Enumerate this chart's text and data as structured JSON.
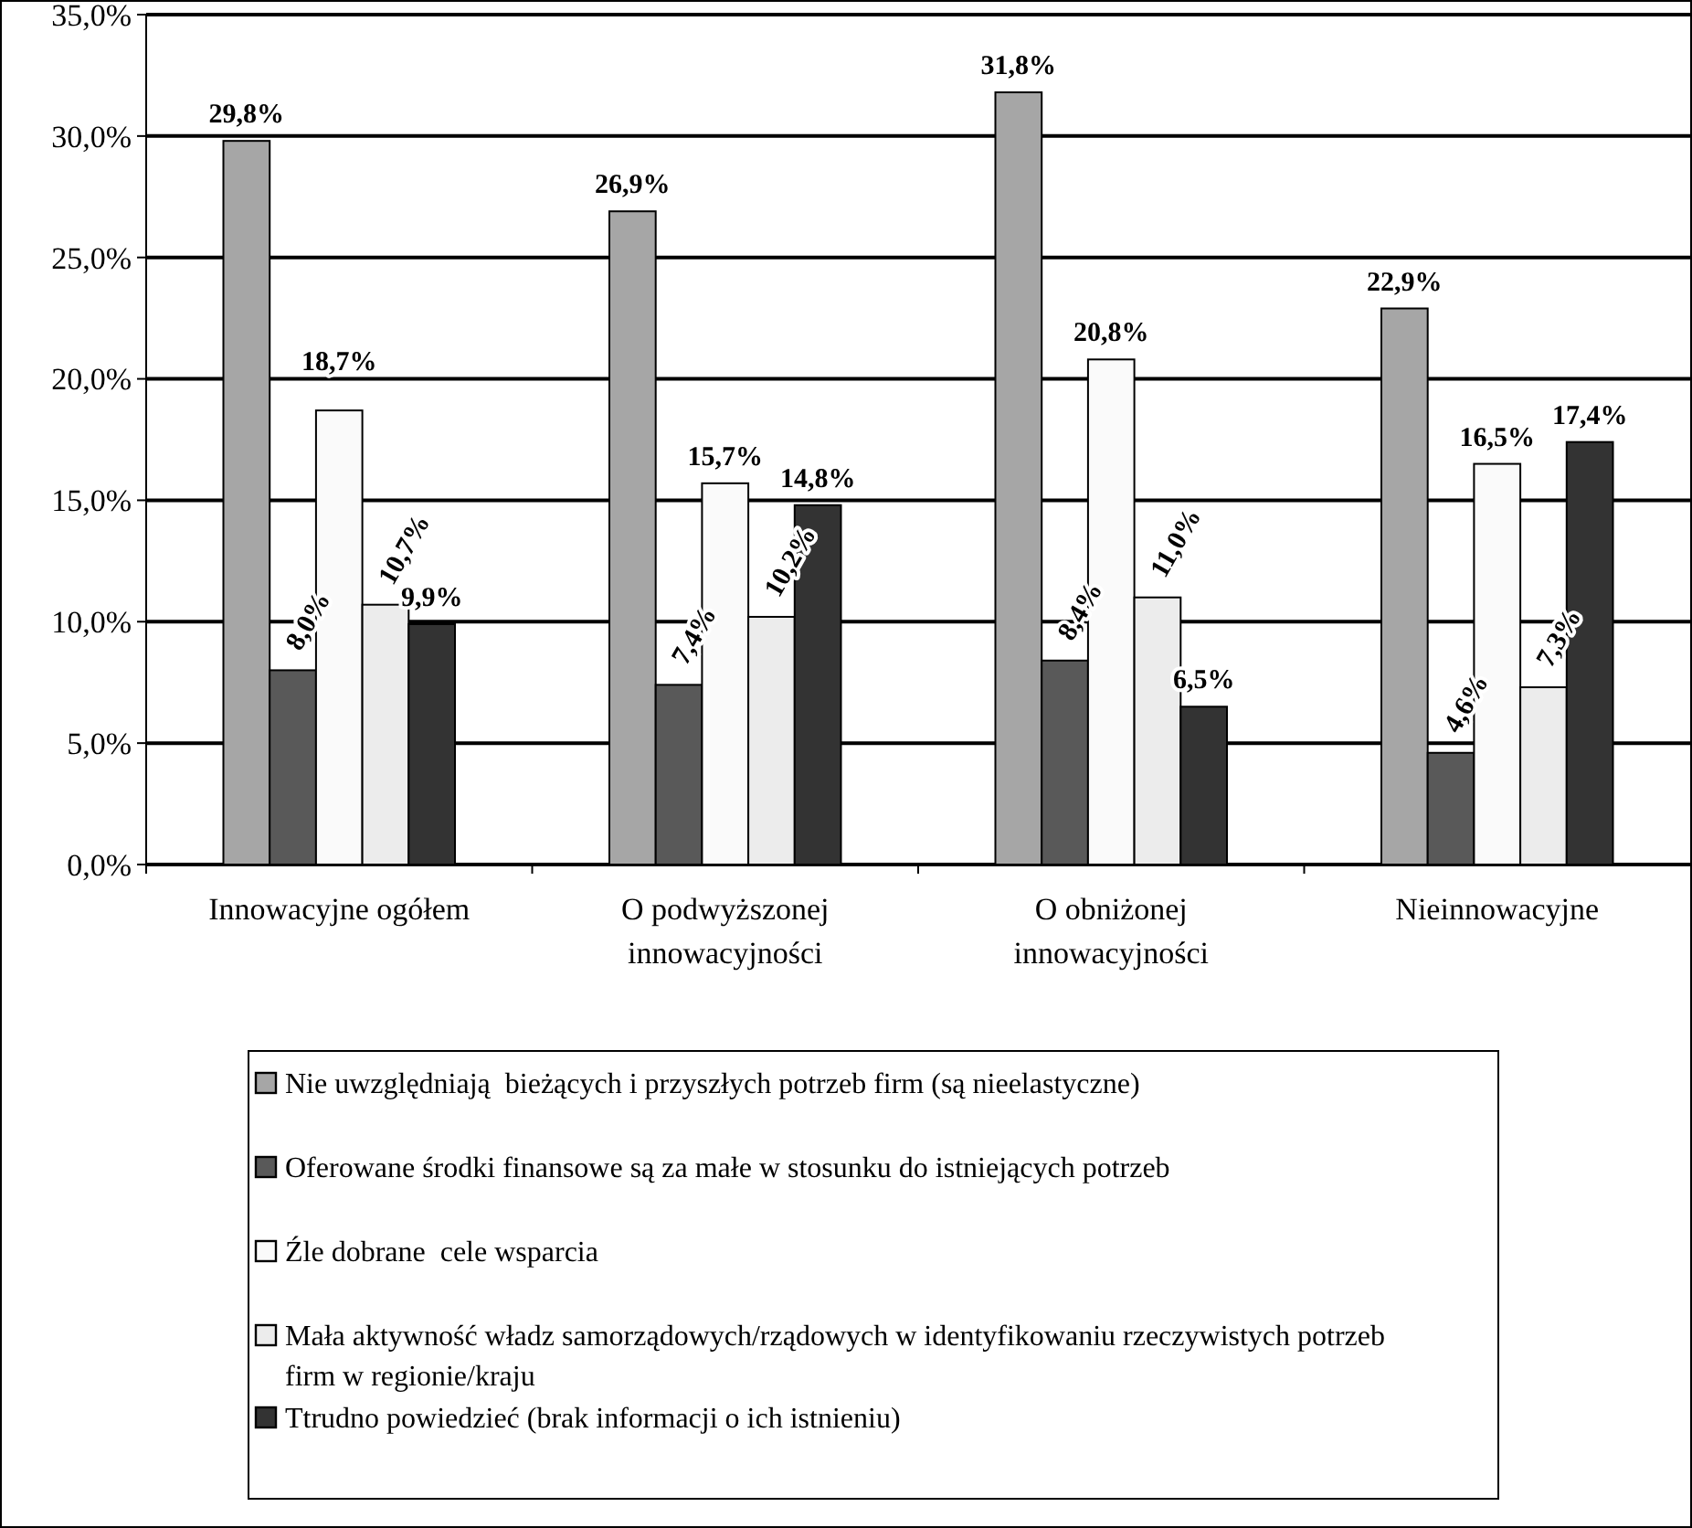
{
  "chart_data": {
    "type": "bar",
    "categories": [
      "Innowacyjne ogółem",
      "O podwyższonej innowacyjności",
      "O obniżonej innowacyjności",
      "Nieinnowacyjne"
    ],
    "series": [
      {
        "name": "Nie uwzględniają  bieżących i przyszłych potrzeb firm (są nieelastyczne)",
        "color": "#a6a6a6",
        "values": [
          29.8,
          26.9,
          31.8,
          22.9
        ]
      },
      {
        "name": "Oferowane środki finansowe są za małe w stosunku do istniejących potrzeb",
        "color": "#595959",
        "values": [
          8.0,
          7.4,
          8.4,
          4.6
        ]
      },
      {
        "name": "Źle dobrane  cele wsparcia",
        "color": "#fafafa",
        "values": [
          18.7,
          15.7,
          20.8,
          16.5
        ]
      },
      {
        "name": "Mała aktywność władz samorządowych/rządowych w identyfikowaniu rzeczywistych potrzeb firm w regionie/kraju",
        "color": "#ececec",
        "values": [
          10.7,
          10.2,
          11.0,
          7.3
        ]
      },
      {
        "name": "Ttrudno powiedzieć (brak informacji o ich istnieniu)",
        "color": "#333333",
        "values": [
          9.9,
          14.8,
          6.5,
          17.4
        ]
      }
    ],
    "value_labels": [
      [
        "29,8%",
        "26,9%",
        "31,8%",
        "22,9%"
      ],
      [
        "8,0%",
        "7,4%",
        "8,4%",
        "4,6%"
      ],
      [
        "18,7%",
        "15,7%",
        "20,8%",
        "16,5%"
      ],
      [
        "10,7%",
        "10,2%",
        "11,0%",
        "7,3%"
      ],
      [
        "9,9%",
        "14,8%",
        "6,5%",
        "17,4%"
      ]
    ],
    "ylim": [
      0,
      35
    ],
    "yticks": [
      {
        "value": 0,
        "label": "0,0%"
      },
      {
        "value": 5,
        "label": "5,0%"
      },
      {
        "value": 10,
        "label": "10,0%"
      },
      {
        "value": 15,
        "label": "15,0%"
      },
      {
        "value": 20,
        "label": "20,0%"
      },
      {
        "value": 25,
        "label": "25,0%"
      },
      {
        "value": 30,
        "label": "30,0%"
      },
      {
        "value": 35,
        "label": "35,0%"
      }
    ],
    "grid": "y",
    "legend": "bottom"
  }
}
